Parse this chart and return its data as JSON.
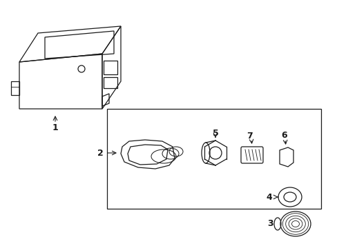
{
  "background_color": "#ffffff",
  "line_color": "#1a1a1a",
  "figsize": [
    4.89,
    3.6
  ],
  "dpi": 100,
  "font_size": 9
}
